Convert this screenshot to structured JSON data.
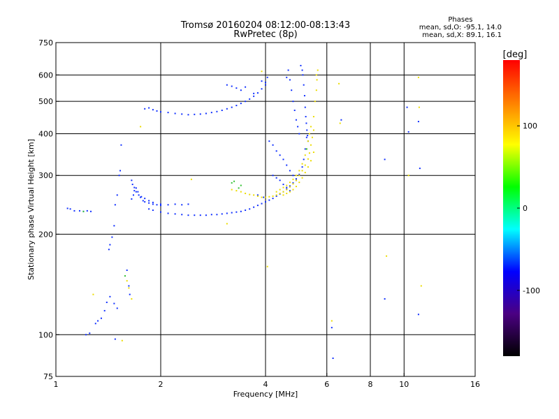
{
  "header": {
    "title_line1": "Tromsø 20160204 08:12:00-08:13:43",
    "title_line2": "RwPretec (8p)"
  },
  "phases_legend": {
    "title": "Phases",
    "line_o": "mean, sd,O: -95.1, 14.0",
    "line_x": "mean, sd,X:  89.1, 16.1"
  },
  "colorbar": {
    "unit_label": "[deg]",
    "ticks": [
      {
        "value": 100,
        "label": "100"
      },
      {
        "value": 0,
        "label": "0"
      },
      {
        "value": -100,
        "label": "-100"
      }
    ],
    "range": [
      -180,
      180
    ],
    "colors": [
      "#000000",
      "#4b0082",
      "#0000ff",
      "#00ffff",
      "#00ff00",
      "#ffff00",
      "#ff7f00",
      "#ff0000"
    ]
  },
  "chart_data": {
    "type": "scatter",
    "xlabel": "Frequency [MHz]",
    "ylabel": "Stationary phase Virtual Height [km]",
    "xscale": "log",
    "yscale": "log",
    "xlim": [
      1,
      16
    ],
    "ylim": [
      75,
      750
    ],
    "xticks": [
      1,
      2,
      4,
      6,
      8,
      10,
      16
    ],
    "yticks": [
      75,
      100,
      200,
      300,
      400,
      500,
      600,
      750
    ],
    "xgrid": [
      2,
      4,
      6,
      8,
      10
    ],
    "ygrid": [
      100,
      200,
      300,
      400,
      500,
      600
    ],
    "series": [
      {
        "mode": "O",
        "color": "#1030ff",
        "points": [
          [
            1.08,
            239
          ],
          [
            1.1,
            238
          ],
          [
            1.13,
            235
          ],
          [
            1.17,
            235
          ],
          [
            1.2,
            234
          ],
          [
            1.23,
            235
          ],
          [
            1.26,
            234
          ],
          [
            1.22,
            100
          ],
          [
            1.25,
            101
          ],
          [
            1.3,
            108
          ],
          [
            1.32,
            110
          ],
          [
            1.35,
            112
          ],
          [
            1.38,
            118
          ],
          [
            1.4,
            125
          ],
          [
            1.43,
            130
          ],
          [
            1.47,
            124
          ],
          [
            1.5,
            120
          ],
          [
            1.42,
            180
          ],
          [
            1.43,
            186
          ],
          [
            1.45,
            196
          ],
          [
            1.47,
            212
          ],
          [
            1.48,
            245
          ],
          [
            1.5,
            262
          ],
          [
            1.52,
            300
          ],
          [
            1.53,
            310
          ],
          [
            1.54,
            370
          ],
          [
            1.48,
            97
          ],
          [
            1.6,
            156
          ],
          [
            1.62,
            140
          ],
          [
            1.63,
            132
          ],
          [
            1.65,
            255
          ],
          [
            1.67,
            262
          ],
          [
            1.68,
            270
          ],
          [
            1.7,
            275
          ],
          [
            1.72,
            268
          ],
          [
            1.75,
            258
          ],
          [
            1.78,
            252
          ],
          [
            1.8,
            250
          ],
          [
            1.85,
            248
          ],
          [
            1.9,
            246
          ],
          [
            1.95,
            245
          ],
          [
            2.0,
            244
          ],
          [
            2.1,
            245
          ],
          [
            2.2,
            246
          ],
          [
            2.3,
            245
          ],
          [
            2.4,
            246
          ],
          [
            1.65,
            290
          ],
          [
            1.66,
            282
          ],
          [
            1.68,
            276
          ],
          [
            1.7,
            268
          ],
          [
            1.73,
            262
          ],
          [
            1.76,
            259
          ],
          [
            1.8,
            256
          ],
          [
            1.85,
            252
          ],
          [
            1.9,
            249
          ],
          [
            2.0,
            246
          ],
          [
            1.85,
            238
          ],
          [
            1.9,
            236
          ],
          [
            2.0,
            233
          ],
          [
            2.1,
            231
          ],
          [
            2.2,
            230
          ],
          [
            2.3,
            229
          ],
          [
            2.4,
            228
          ],
          [
            2.5,
            228
          ],
          [
            2.6,
            228
          ],
          [
            2.7,
            228
          ],
          [
            2.8,
            229
          ],
          [
            2.9,
            229
          ],
          [
            3.0,
            230
          ],
          [
            3.1,
            231
          ],
          [
            3.2,
            232
          ],
          [
            3.3,
            233
          ],
          [
            3.4,
            234
          ],
          [
            3.5,
            236
          ],
          [
            3.6,
            238
          ],
          [
            3.7,
            241
          ],
          [
            3.8,
            244
          ],
          [
            3.9,
            247
          ],
          [
            4.0,
            250
          ],
          [
            4.1,
            253
          ],
          [
            4.2,
            256
          ],
          [
            4.3,
            260
          ],
          [
            4.4,
            264
          ],
          [
            4.5,
            268
          ],
          [
            4.6,
            273
          ],
          [
            4.7,
            279
          ],
          [
            4.8,
            285
          ],
          [
            4.9,
            293
          ],
          [
            5.0,
            302
          ],
          [
            5.1,
            318
          ],
          [
            5.15,
            335
          ],
          [
            5.2,
            360
          ],
          [
            5.25,
            390
          ],
          [
            1.8,
            475
          ],
          [
            1.85,
            478
          ],
          [
            1.9,
            472
          ],
          [
            1.95,
            468
          ],
          [
            2.0,
            465
          ],
          [
            2.1,
            463
          ],
          [
            2.2,
            460
          ],
          [
            2.3,
            458
          ],
          [
            2.4,
            456
          ],
          [
            2.5,
            457
          ],
          [
            2.6,
            458
          ],
          [
            2.7,
            460
          ],
          [
            2.8,
            463
          ],
          [
            2.9,
            466
          ],
          [
            3.0,
            470
          ],
          [
            3.1,
            475
          ],
          [
            3.2,
            480
          ],
          [
            3.3,
            486
          ],
          [
            3.4,
            493
          ],
          [
            3.5,
            500
          ],
          [
            3.6,
            508
          ],
          [
            3.7,
            518
          ],
          [
            3.8,
            530
          ],
          [
            3.9,
            545
          ],
          [
            4.0,
            560
          ],
          [
            3.1,
            560
          ],
          [
            3.2,
            555
          ],
          [
            3.3,
            548
          ],
          [
            3.4,
            540
          ],
          [
            3.5,
            552
          ],
          [
            3.7,
            528
          ],
          [
            3.9,
            575
          ],
          [
            4.0,
            570
          ],
          [
            4.05,
            590
          ],
          [
            4.6,
            590
          ],
          [
            4.65,
            620
          ],
          [
            4.7,
            580
          ],
          [
            4.75,
            540
          ],
          [
            4.8,
            500
          ],
          [
            4.85,
            470
          ],
          [
            4.9,
            440
          ],
          [
            4.95,
            420
          ],
          [
            5.0,
            400
          ],
          [
            4.1,
            380
          ],
          [
            4.2,
            370
          ],
          [
            4.3,
            355
          ],
          [
            4.4,
            345
          ],
          [
            4.5,
            335
          ],
          [
            4.6,
            322
          ],
          [
            4.7,
            310
          ],
          [
            4.8,
            300
          ],
          [
            4.9,
            290
          ],
          [
            5.05,
            640
          ],
          [
            5.1,
            620
          ],
          [
            5.12,
            600
          ],
          [
            5.15,
            560
          ],
          [
            5.18,
            520
          ],
          [
            5.2,
            480
          ],
          [
            5.22,
            450
          ],
          [
            5.24,
            430
          ],
          [
            5.26,
            410
          ],
          [
            5.28,
            395
          ],
          [
            5.3,
            380
          ],
          [
            4.2,
            300
          ],
          [
            4.3,
            295
          ],
          [
            4.4,
            290
          ],
          [
            4.5,
            282
          ],
          [
            4.6,
            276
          ],
          [
            4.7,
            270
          ],
          [
            3.8,
            262
          ],
          [
            3.95,
            258
          ],
          [
            6.6,
            440
          ],
          [
            6.2,
            105
          ],
          [
            6.25,
            85
          ],
          [
            8.8,
            335
          ],
          [
            8.8,
            128
          ],
          [
            10.2,
            480
          ],
          [
            10.3,
            405
          ],
          [
            11.0,
            435
          ],
          [
            11.0,
            115
          ],
          [
            11.1,
            315
          ]
        ]
      },
      {
        "mode": "X",
        "color": "#ecdc00",
        "points": [
          [
            3.2,
            272
          ],
          [
            3.3,
            270
          ],
          [
            3.4,
            268
          ],
          [
            3.5,
            265
          ],
          [
            3.6,
            263
          ],
          [
            3.7,
            262
          ],
          [
            3.8,
            260
          ],
          [
            3.9,
            258
          ],
          [
            4.0,
            258
          ],
          [
            4.1,
            259
          ],
          [
            4.2,
            260
          ],
          [
            4.3,
            262
          ],
          [
            4.4,
            265
          ],
          [
            4.5,
            268
          ],
          [
            4.6,
            272
          ],
          [
            4.7,
            277
          ],
          [
            4.8,
            283
          ],
          [
            4.9,
            290
          ],
          [
            5.0,
            300
          ],
          [
            5.1,
            310
          ],
          [
            5.2,
            322
          ],
          [
            5.3,
            336
          ],
          [
            5.35,
            350
          ],
          [
            5.4,
            370
          ],
          [
            5.45,
            390
          ],
          [
            5.5,
            410
          ],
          [
            4.3,
            268
          ],
          [
            4.4,
            272
          ],
          [
            4.5,
            276
          ],
          [
            4.6,
            280
          ],
          [
            4.7,
            286
          ],
          [
            4.8,
            292
          ],
          [
            4.9,
            300
          ],
          [
            5.0,
            310
          ],
          [
            5.1,
            325
          ],
          [
            5.2,
            345
          ],
          [
            5.25,
            360
          ],
          [
            5.3,
            380
          ],
          [
            5.35,
            400
          ],
          [
            5.4,
            420
          ],
          [
            4.5,
            262
          ],
          [
            4.6,
            265
          ],
          [
            4.7,
            268
          ],
          [
            4.8,
            272
          ],
          [
            4.9,
            278
          ],
          [
            5.0,
            286
          ],
          [
            5.1,
            295
          ],
          [
            5.2,
            306
          ],
          [
            5.3,
            318
          ],
          [
            5.4,
            332
          ],
          [
            5.5,
            352
          ],
          [
            5.5,
            450
          ],
          [
            5.55,
            500
          ],
          [
            5.6,
            540
          ],
          [
            5.62,
            580
          ],
          [
            5.65,
            620
          ],
          [
            5.6,
            600
          ],
          [
            1.28,
            132
          ],
          [
            1.55,
            96
          ],
          [
            1.6,
            145
          ],
          [
            1.62,
            138
          ],
          [
            1.65,
            128
          ],
          [
            1.75,
            420
          ],
          [
            2.45,
            292
          ],
          [
            3.1,
            215
          ],
          [
            4.05,
            160
          ],
          [
            3.9,
            615
          ],
          [
            6.5,
            565
          ],
          [
            6.55,
            430
          ],
          [
            6.2,
            110
          ],
          [
            8.9,
            172
          ],
          [
            10.3,
            300
          ],
          [
            11.2,
            140
          ],
          [
            11.0,
            590
          ],
          [
            11.05,
            480
          ]
        ]
      },
      {
        "mode": "other",
        "color": "#30c030",
        "points": [
          [
            3.2,
            285
          ],
          [
            3.25,
            288
          ],
          [
            3.35,
            275
          ],
          [
            1.58,
            150
          ],
          [
            1.2,
            234
          ],
          [
            3.4,
            280
          ],
          [
            5.25,
            360
          ]
        ]
      }
    ]
  }
}
